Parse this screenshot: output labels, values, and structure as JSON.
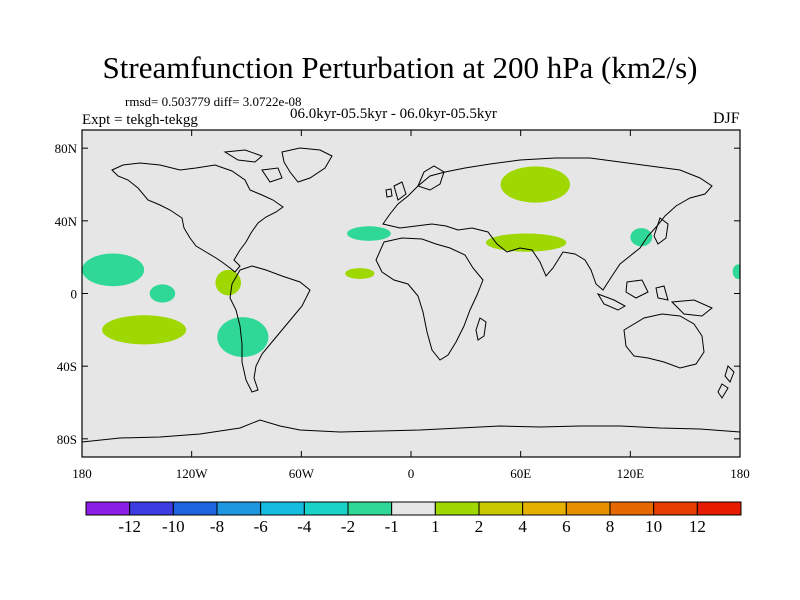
{
  "title": "Streamfunction Perturbation at 200 hPa (km2/s)",
  "stats": "rmsd= 0.503779 diff= 3.0722e-08",
  "experiment": "Expt = tekgh-tekgg",
  "period": "06.0kyr-05.5kyr - 06.0kyr-05.5kyr",
  "season": "DJF",
  "map": {
    "projection": "cylindrical equidistant",
    "background_color": "#e6e6e6",
    "coast_color": "#000000",
    "lat_ticks": [
      {
        "value": 80,
        "label": "80N"
      },
      {
        "value": 40,
        "label": "40N"
      },
      {
        "value": 0,
        "label": "0"
      },
      {
        "value": -40,
        "label": "40S"
      },
      {
        "value": -80,
        "label": "80S"
      }
    ],
    "lon_ticks": [
      {
        "value": -180,
        "label": "180"
      },
      {
        "value": -120,
        "label": "120W"
      },
      {
        "value": -60,
        "label": "60W"
      },
      {
        "value": 0,
        "label": "0"
      },
      {
        "value": 60,
        "label": "60E"
      },
      {
        "value": 120,
        "label": "120E"
      },
      {
        "value": 180,
        "label": "180"
      }
    ],
    "anomalies": [
      {
        "name": "anomaly-north-pacific-east",
        "sign": "negative",
        "lon": -163,
        "lat": 13,
        "rlon": 17,
        "rlat": 9,
        "color": "#30d898"
      },
      {
        "name": "anomaly-tropical-pacific",
        "sign": "negative",
        "lon": -136,
        "lat": 0,
        "rlon": 7,
        "rlat": 5,
        "color": "#30d898"
      },
      {
        "name": "anomaly-south-pacific",
        "sign": "positive",
        "lon": -146,
        "lat": -20,
        "rlon": 23,
        "rlat": 8,
        "color": "#9ed800"
      },
      {
        "name": "anomaly-central-america",
        "sign": "positive",
        "lon": -100,
        "lat": 6,
        "rlon": 7,
        "rlat": 7,
        "color": "#9ed800"
      },
      {
        "name": "anomaly-southeast-pacific",
        "sign": "negative",
        "lon": -92,
        "lat": -24,
        "rlon": 14,
        "rlat": 11,
        "color": "#30d898"
      },
      {
        "name": "anomaly-north-atlantic",
        "sign": "negative",
        "lon": -23,
        "lat": 33,
        "rlon": 12,
        "rlat": 4,
        "color": "#30d898"
      },
      {
        "name": "anomaly-tropical-atlantic",
        "sign": "positive",
        "lon": -28,
        "lat": 11,
        "rlon": 8,
        "rlat": 3,
        "color": "#9ed800"
      },
      {
        "name": "anomaly-siberia",
        "sign": "positive",
        "lon": 68,
        "lat": 60,
        "rlon": 19,
        "rlat": 10,
        "color": "#9ed800"
      },
      {
        "name": "anomaly-south-asia",
        "sign": "positive",
        "lon": 63,
        "lat": 28,
        "rlon": 22,
        "rlat": 5,
        "color": "#9ed800"
      },
      {
        "name": "anomaly-east-china",
        "sign": "negative",
        "lon": 126,
        "lat": 31,
        "rlon": 6,
        "rlat": 5,
        "color": "#30d898"
      },
      {
        "name": "anomaly-dateline",
        "sign": "negative",
        "lon": 179,
        "lat": 12,
        "rlon": 3,
        "rlat": 4,
        "color": "#30d898"
      }
    ]
  },
  "colorbar": {
    "colors": [
      "#8c1fe6",
      "#3c3ce0",
      "#1e64e0",
      "#1e96e0",
      "#16bce0",
      "#1ad2c8",
      "#30d898",
      "#e6e6e6",
      "#9ed800",
      "#c8c800",
      "#e6b000",
      "#e69000",
      "#e66800",
      "#e63c00",
      "#e61c00"
    ],
    "labels": [
      "-12",
      "-10",
      "-8",
      "-6",
      "-4",
      "-2",
      "-1",
      "1",
      "2",
      "4",
      "6",
      "8",
      "10",
      "12"
    ]
  }
}
